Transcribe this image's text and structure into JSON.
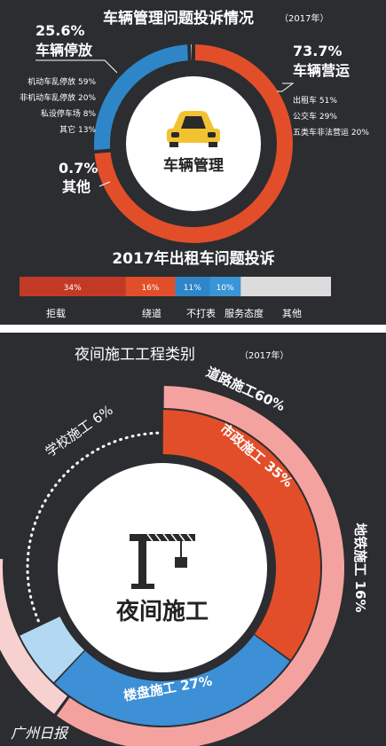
{
  "chart_data": [
    {
      "type": "pie",
      "title": "车辆管理问题投诉情况",
      "title_note": "（2017年）",
      "center_label": "车辆管理",
      "series": [
        {
          "name": "车辆营运",
          "value": 73.7,
          "label": "73.7%",
          "color": "#e24e2a",
          "details": [
            "出租车 51%",
            "公交车 29%",
            "五类车非法营运 20%"
          ]
        },
        {
          "name": "车辆停放",
          "value": 25.6,
          "label": "25.6%",
          "color": "#2e86c8",
          "details": [
            "机动车乱停放 59%",
            "非机动车乱停放 20%",
            "私设停车场 8%",
            "其它 13%"
          ]
        },
        {
          "name": "其他",
          "value": 0.7,
          "label": "0.7%",
          "color": "#c8e0f3",
          "details": []
        }
      ]
    },
    {
      "type": "bar",
      "title": "2017年出租车问题投诉",
      "categories": [
        "拒载",
        "绕道",
        "不打表",
        "服务态度",
        "其他"
      ],
      "values": [
        34,
        16,
        11,
        10,
        29
      ],
      "value_labels": [
        "34%",
        "16%",
        "11%",
        "10%",
        ""
      ],
      "colors": [
        "#c23a26",
        "#e24e2a",
        "#2e86c8",
        "#3a95d6",
        "#dcdcdc"
      ]
    },
    {
      "type": "pie",
      "title": "夜间施工工程类别",
      "title_note": "（2017年）",
      "center_label": "夜间施工",
      "outer_ring": [
        {
          "name": "道路施工",
          "value": 60,
          "label": "道路施工60%",
          "color": "#f4a2a0"
        },
        {
          "name": "地铁施工",
          "value": 16,
          "label": "地铁施工 16%",
          "color": "#f7d1cf"
        }
      ],
      "inner_ring": [
        {
          "name": "市政施工",
          "value": 35,
          "label": "市政施工 35%",
          "color": "#e24e2a"
        },
        {
          "name": "楼盘施工",
          "value": 27,
          "label": "楼盘施工 27%",
          "color": "#3d8fd6"
        },
        {
          "name": "学校施工",
          "value": 6,
          "label": "学校施工 6%",
          "color": "#b3d9f2"
        }
      ]
    }
  ],
  "watermark": "广州日报",
  "colors": {
    "panel_dark": "#2b2d30",
    "ring_outline": "#ffffff",
    "accent_yellow": "#f2c230"
  }
}
